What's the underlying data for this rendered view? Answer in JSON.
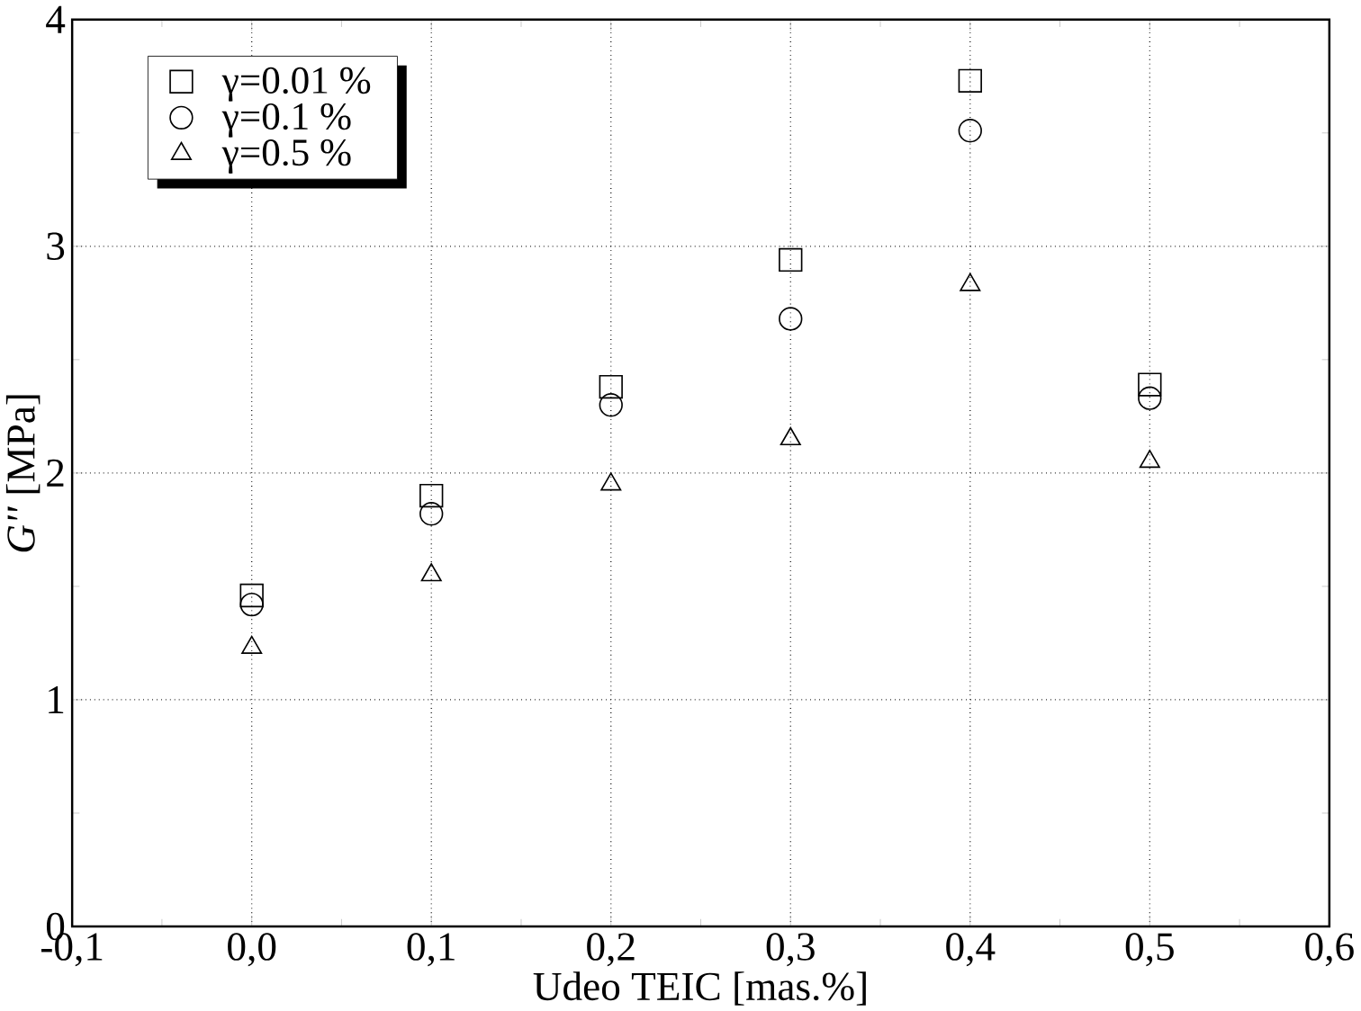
{
  "chart_data": {
    "type": "scatter",
    "xlabel": "Udeo TEIC [mas.%]",
    "ylabel": "*G''* [MPa]",
    "x": [
      0.0,
      0.1,
      0.2,
      0.3,
      0.4,
      0.5
    ],
    "series": [
      {
        "name": "γ=0.01 %",
        "color": "#000000",
        "marker": "square",
        "values": [
          1.46,
          1.9,
          2.38,
          2.94,
          3.73,
          2.39
        ]
      },
      {
        "name": "γ=0.1 %",
        "color": "#000000",
        "marker": "circle",
        "values": [
          1.42,
          1.82,
          2.3,
          2.68,
          3.51,
          2.33
        ]
      },
      {
        "name": "γ=0.5 %",
        "color": "#000000",
        "marker": "triangle",
        "values": [
          1.23,
          1.55,
          1.95,
          2.15,
          2.83,
          2.05
        ]
      }
    ],
    "xlim": [
      -0.1,
      0.6
    ],
    "ylim": [
      0,
      4
    ],
    "xticks": [
      {
        "value": -0.1,
        "label": "-0,1"
      },
      {
        "value": 0.0,
        "label": "0,0"
      },
      {
        "value": 0.1,
        "label": "0,1"
      },
      {
        "value": 0.2,
        "label": "0,2"
      },
      {
        "value": 0.3,
        "label": "0,3"
      },
      {
        "value": 0.4,
        "label": "0,4"
      },
      {
        "value": 0.5,
        "label": "0,5"
      },
      {
        "value": 0.6,
        "label": "0,6"
      }
    ],
    "yticks": [
      0,
      1,
      2,
      3,
      4
    ],
    "grid": true,
    "legend": "top left"
  }
}
